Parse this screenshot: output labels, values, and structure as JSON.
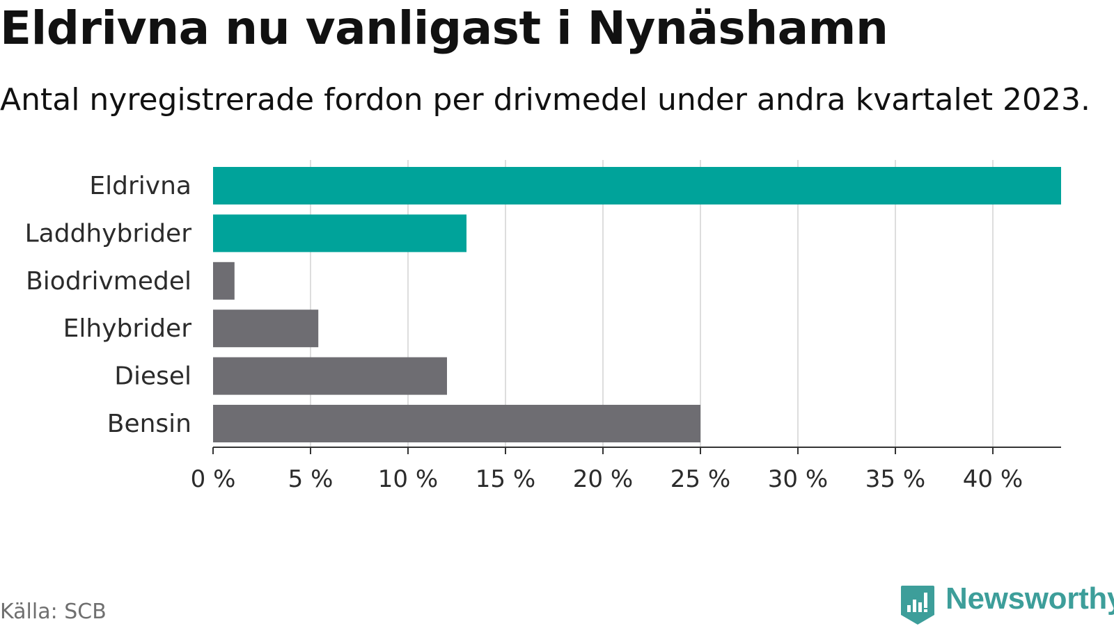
{
  "header": {
    "title": "Eldrivna nu vanligast i Nynäshamn",
    "subtitle": "Antal nyregistrerade fordon per drivmedel under andra kvartalet 2023."
  },
  "footer": {
    "source": "Källa: SCB",
    "brand": "Newsworthy",
    "brand_icon": "newsworthy-bar-chart-icon"
  },
  "colors": {
    "highlight": "#00a39a",
    "default": "#6e6d72",
    "grid": "#dddddd",
    "axis": "#333333",
    "brand": "#3d9e9a"
  },
  "chart_data": {
    "type": "bar",
    "orientation": "horizontal",
    "title": "Eldrivna nu vanligast i Nynäshamn",
    "subtitle": "Antal nyregistrerade fordon per drivmedel under andra kvartalet 2023.",
    "xlabel": "",
    "ylabel": "",
    "categories": [
      "Eldrivna",
      "Laddhybrider",
      "Biodrivmedel",
      "Elhybrider",
      "Diesel",
      "Bensin"
    ],
    "values": [
      43.5,
      13.0,
      1.1,
      5.4,
      12.0,
      25.0
    ],
    "highlighted": [
      true,
      true,
      false,
      false,
      false,
      false
    ],
    "unit": "%",
    "xlim": [
      0,
      43.5
    ],
    "ticks": [
      0,
      5,
      10,
      15,
      20,
      25,
      30,
      35,
      40
    ],
    "tick_labels": [
      "0 %",
      "5 %",
      "10 %",
      "15 %",
      "20 %",
      "25 %",
      "30 %",
      "35 %",
      "40 %"
    ],
    "grid": true
  }
}
